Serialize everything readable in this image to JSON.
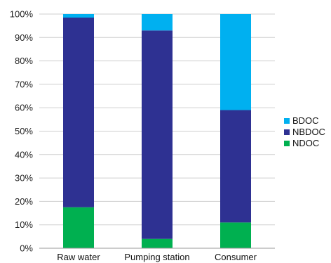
{
  "chart_data": {
    "type": "bar",
    "stacked": true,
    "categories": [
      "Raw water",
      "Pumping station",
      "Consumer"
    ],
    "series": [
      {
        "name": "NDOC",
        "values": [
          17.5,
          4,
          11
        ],
        "color": "#00b050"
      },
      {
        "name": "NBDOC",
        "values": [
          81,
          89,
          48
        ],
        "color": "#2e3192"
      },
      {
        "name": "BDOC",
        "values": [
          1.5,
          7,
          41
        ],
        "color": "#00b0f0"
      }
    ],
    "ylim": [
      0,
      100
    ],
    "yticks": [
      "0%",
      "10%",
      "20%",
      "30%",
      "40%",
      "50%",
      "60%",
      "70%",
      "80%",
      "90%",
      "100%"
    ],
    "grid": true,
    "legend_position": "right",
    "legend_order": [
      "BDOC",
      "NBDOC",
      "NDOC"
    ]
  }
}
